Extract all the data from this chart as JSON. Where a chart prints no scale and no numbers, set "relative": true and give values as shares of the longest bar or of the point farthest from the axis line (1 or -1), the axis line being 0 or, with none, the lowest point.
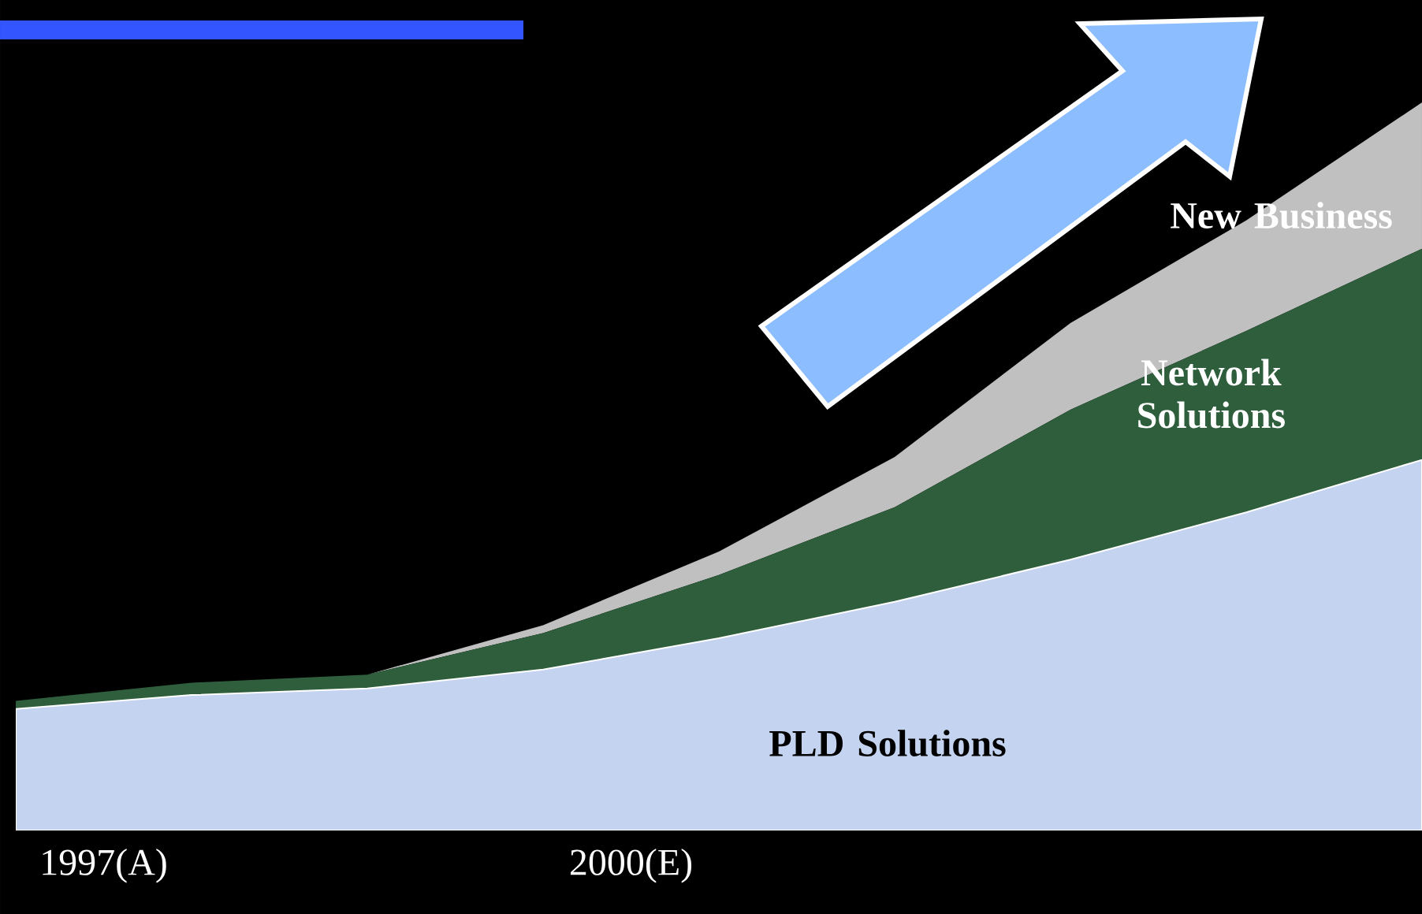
{
  "chart_data": {
    "type": "area",
    "stacked": true,
    "relative": true,
    "x": [
      1996.5,
      1997.5,
      1998.5,
      1999.5,
      2000.5,
      2001.5,
      2002.5,
      2003.5,
      2004.5
    ],
    "xlim": [
      1996.5,
      2004.5
    ],
    "xticks": [
      {
        "value": 1997,
        "label": "1997(A)"
      },
      {
        "value": 2000,
        "label": "2000(E)"
      }
    ],
    "series": [
      {
        "name": "PLD Solutions",
        "color": "#c4d4f0",
        "values": [
          0.167,
          0.186,
          0.195,
          0.221,
          0.264,
          0.314,
          0.372,
          0.437,
          0.509
        ]
      },
      {
        "name": "Network Solutions",
        "color": "#2e5e3c",
        "values": [
          0.011,
          0.017,
          0.019,
          0.05,
          0.087,
          0.13,
          0.206,
          0.249,
          0.29
        ]
      },
      {
        "name": "New Business",
        "color": "#c0c0c0",
        "values": [
          0,
          0,
          0,
          0.011,
          0.032,
          0.069,
          0.119,
          0.152,
          0.201
        ]
      }
    ]
  }
}
